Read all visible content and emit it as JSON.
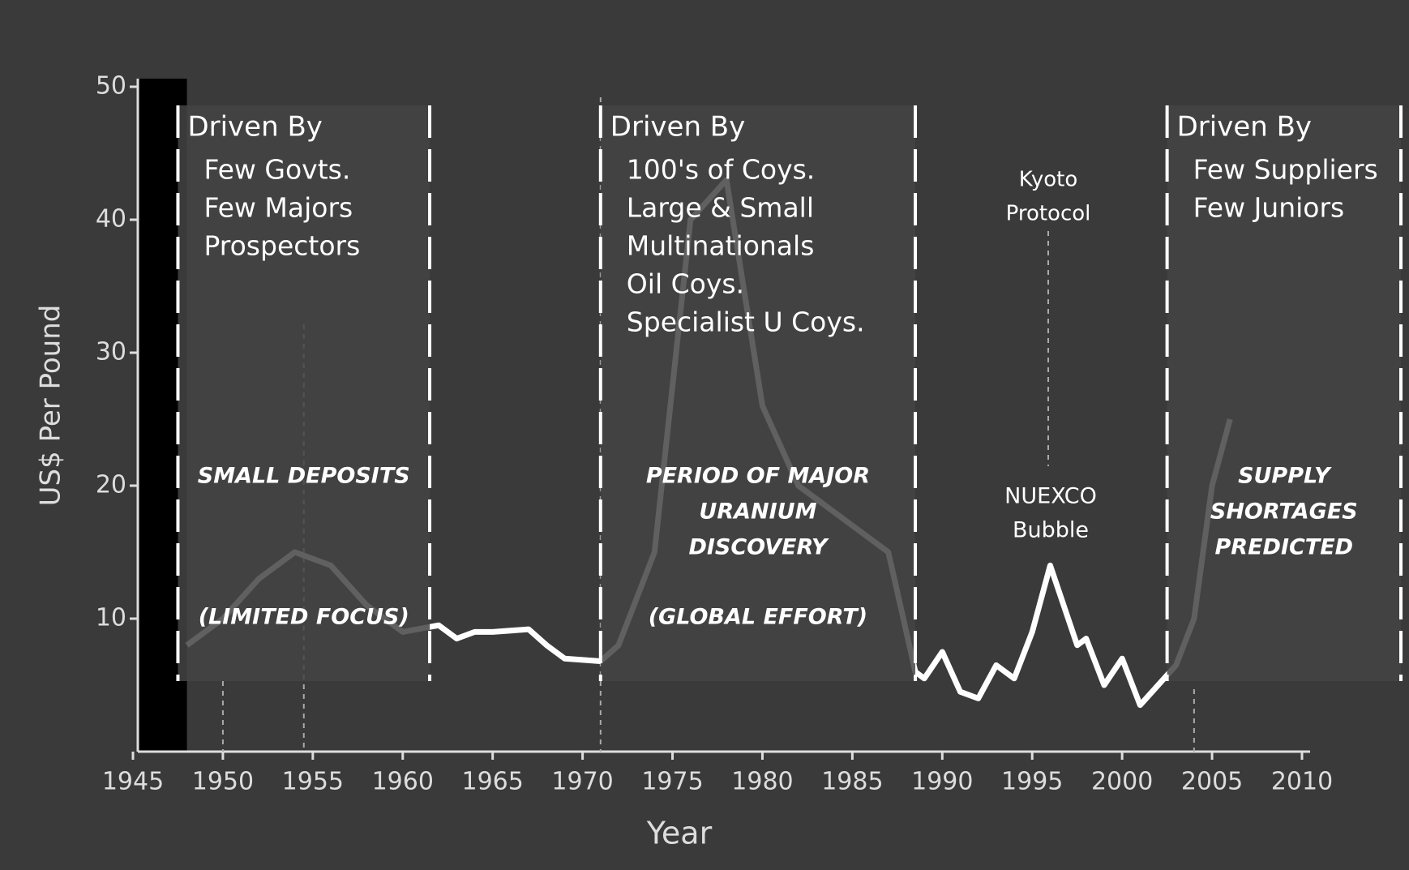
{
  "chart_data": {
    "type": "line",
    "xlabel": "Year",
    "ylabel": "US$ Per Pound",
    "x": [
      1948,
      1950,
      1952,
      1954,
      1956,
      1958,
      1960,
      1962,
      1963,
      1964,
      1965,
      1967,
      1968,
      1969,
      1971,
      1972,
      1974,
      1976,
      1978,
      1980,
      1982,
      1985,
      1987,
      1988.5,
      1989,
      1990,
      1991,
      1992,
      1993,
      1994,
      1995,
      1996,
      1997,
      1997.5,
      1998,
      1999,
      2000,
      2001,
      2002,
      2003,
      2004,
      2005,
      2006
    ],
    "values": [
      8,
      10,
      13,
      15,
      14,
      11,
      9,
      9.5,
      8.5,
      9,
      9,
      9.2,
      8,
      7,
      6.8,
      8,
      15,
      40,
      43,
      26,
      20,
      17,
      15,
      6,
      5.5,
      7.5,
      4.5,
      4,
      6.5,
      5.5,
      9,
      14,
      10,
      8,
      8.5,
      5,
      7,
      3.5,
      5,
      6.5,
      10,
      20,
      25
    ],
    "color": "#ffffff",
    "xlim": [
      1945,
      2010
    ],
    "xticks": [
      1945,
      1950,
      1955,
      1960,
      1965,
      1970,
      1975,
      1980,
      1985,
      1990,
      1995,
      2000,
      2005,
      2010
    ],
    "ylim": [
      0,
      50
    ],
    "yticks": [
      10,
      20,
      30,
      40,
      50
    ],
    "periods": [
      {
        "start": 1947.5,
        "end": 1961.5,
        "heading": "Driven By",
        "drivers": [
          "Few Govts.",
          "Few Majors",
          "Prospectors"
        ],
        "summary": [
          "SMALL DEPOSITS"
        ],
        "note": "(LIMITED FOCUS)"
      },
      {
        "start": 1971,
        "end": 1988.5,
        "heading": "Driven By",
        "drivers": [
          "100's of Coys.",
          "Large & Small",
          "Multinationals",
          "Oil Coys.",
          "Specialist U Coys."
        ],
        "summary": [
          "PERIOD OF MAJOR",
          "URANIUM",
          "DISCOVERY"
        ],
        "note": "(GLOBAL EFFORT)"
      },
      {
        "start": 2002.5,
        "end": 2015.5,
        "heading": "Driven By",
        "drivers": [
          "Few Suppliers",
          "Few Juniors"
        ],
        "summary": [
          "SUPPLY",
          "SHORTAGES",
          "PREDICTED"
        ]
      }
    ],
    "annotations": [
      [
        "Kyoto",
        "Protocol"
      ],
      [
        "NUEXCO",
        "Bubble"
      ]
    ]
  }
}
